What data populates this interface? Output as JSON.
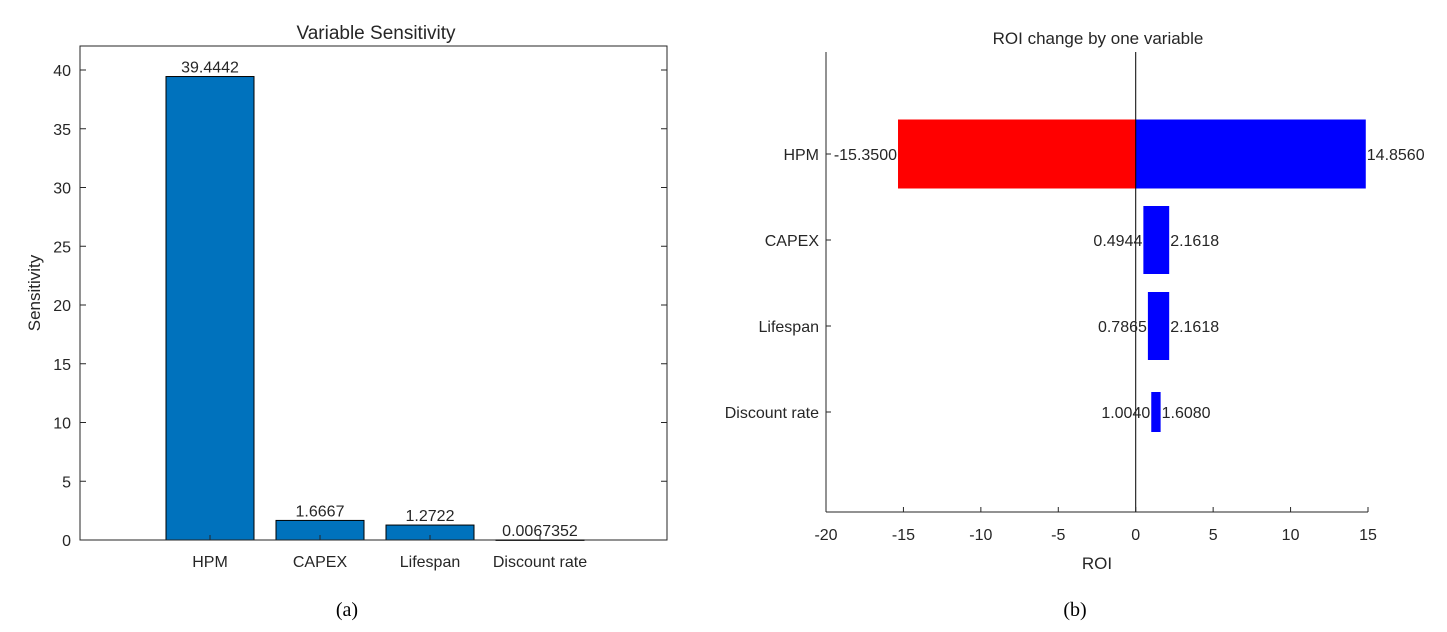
{
  "colors": {
    "bar_a": "#0072BD",
    "neg": "#FF0000",
    "pos": "#0000FF",
    "axis": "#262626"
  },
  "captions": {
    "a": "(a)",
    "b": "(b)"
  },
  "chart_data": [
    {
      "type": "bar",
      "title": "Variable Sensitivity",
      "xlabel": "",
      "ylabel": "Sensitivity",
      "categories": [
        "HPM",
        "CAPEX",
        "Lifespan",
        "Discount rate"
      ],
      "values": [
        39.4442,
        1.6667,
        1.2722,
        0.0067352
      ],
      "value_labels": [
        "39.4442",
        "1.6667",
        "1.2722",
        "0.0067352"
      ],
      "ylim": [
        0,
        40
      ],
      "yticks": [
        0,
        5,
        10,
        15,
        20,
        25,
        30,
        35,
        40
      ],
      "ytick_labels": [
        "0",
        "5",
        "10",
        "15",
        "20",
        "25",
        "30",
        "35",
        "40"
      ],
      "grid": false
    },
    {
      "type": "bar",
      "orientation": "horizontal",
      "title": "ROI change by one variable",
      "xlabel": "ROI",
      "ylabel": "",
      "categories": [
        "HPM",
        "CAPEX",
        "Lifespan",
        "Discount rate"
      ],
      "low": [
        -15.35,
        0.4944,
        0.7865,
        1.004
      ],
      "high": [
        14.856,
        2.1618,
        2.1618,
        1.608
      ],
      "low_labels": [
        "-15.3500",
        "0.4944",
        "0.7865",
        "1.0040"
      ],
      "high_labels": [
        "14.8560",
        "2.1618",
        "2.1618",
        "1.6080"
      ],
      "xlim": [
        -20,
        15
      ],
      "xticks": [
        -20,
        -15,
        -10,
        -5,
        0,
        5,
        10,
        15
      ],
      "xtick_labels": [
        "-20",
        "-15",
        "-10",
        "-5",
        "0",
        "5",
        "10",
        "15"
      ],
      "reference_line_x": 0,
      "grid": false
    }
  ]
}
